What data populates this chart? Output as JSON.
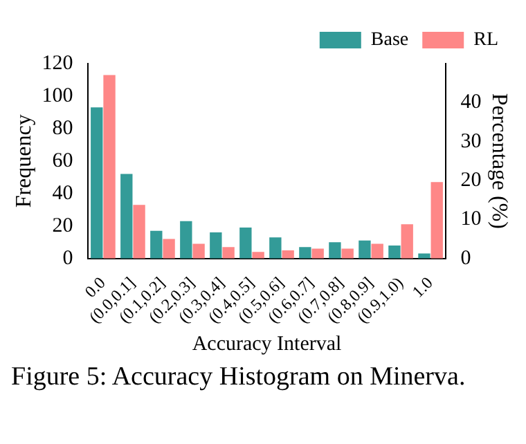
{
  "chart_data": {
    "type": "bar",
    "xlabel": "Accuracy Interval",
    "ylabel": "Frequency",
    "y2label": "Percentage (%)",
    "categories": [
      "0.0",
      "(0.0,0.1]",
      "(0.1,0.2]",
      "(0.2,0.3]",
      "(0.3,0.4]",
      "(0.4,0.5]",
      "(0.5,0.6]",
      "(0.6,0.7]",
      "(0.7,0.8]",
      "(0.8,0.9]",
      "(0.9,1.0)",
      "1.0"
    ],
    "series": [
      {
        "name": "Base",
        "color": "#339b98",
        "values": [
          93,
          52,
          17,
          23,
          16,
          19,
          13,
          7,
          10,
          11,
          8,
          3
        ]
      },
      {
        "name": "RL",
        "color": "#fe8787",
        "values": [
          113,
          33,
          12,
          9,
          7,
          4,
          5,
          6,
          6,
          9,
          21,
          47
        ]
      }
    ],
    "ylim": [
      0,
      120
    ],
    "yticks": [
      0,
      20,
      40,
      60,
      80,
      100,
      120
    ],
    "y2lim": [
      0,
      50
    ],
    "y2ticks": [
      0,
      10,
      20,
      30,
      40
    ],
    "legend": "top right",
    "grid": false,
    "annotations": [
      "Figure 5: Accuracy Histogram on Minerva."
    ]
  }
}
